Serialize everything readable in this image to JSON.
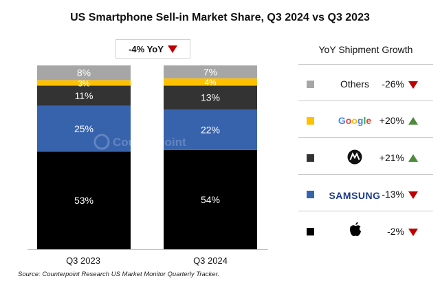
{
  "title": "US Smartphone Sell-in Market Share, Q3 2024 vs Q3 2023",
  "yoy_label": "-4% YoY",
  "watermark": "Counterpoint",
  "source": "Source: Counterpoint Research US Market Monitor Quarterly Tracker.",
  "colors": {
    "apple": "#000000",
    "samsung": "#3763ad",
    "motorola": "#333333",
    "google": "#ffc000",
    "others": "#a6a6a6",
    "down": "#c00000",
    "up": "#4e8a3b"
  },
  "chart_data": {
    "type": "bar",
    "stacked": true,
    "categories": [
      "Q3 2023",
      "Q3 2024"
    ],
    "series": [
      {
        "key": "apple",
        "values": [
          53,
          54
        ]
      },
      {
        "key": "samsung",
        "values": [
          25,
          22
        ]
      },
      {
        "key": "motorola",
        "values": [
          11,
          13
        ]
      },
      {
        "key": "google",
        "values": [
          3,
          4
        ]
      },
      {
        "key": "others",
        "values": [
          8,
          7
        ]
      }
    ],
    "ylim": [
      0,
      100
    ],
    "grid": false
  },
  "growth_panel": {
    "title": "YoY Shipment Growth",
    "rows": [
      {
        "key": "others",
        "name": "Others",
        "value": "-26%",
        "direction": "down",
        "logo": "text"
      },
      {
        "key": "google",
        "name": "Google",
        "value": "+20%",
        "direction": "up",
        "logo": "google-logo"
      },
      {
        "key": "motorola",
        "name": "Motorola",
        "value": "+21%",
        "direction": "up",
        "logo": "motorola-logo"
      },
      {
        "key": "samsung",
        "name": "SAMSUNG",
        "value": "-13%",
        "direction": "down",
        "logo": "samsung-logo"
      },
      {
        "key": "apple",
        "name": "Apple",
        "value": "-2%",
        "direction": "down",
        "logo": "apple-logo"
      }
    ]
  }
}
